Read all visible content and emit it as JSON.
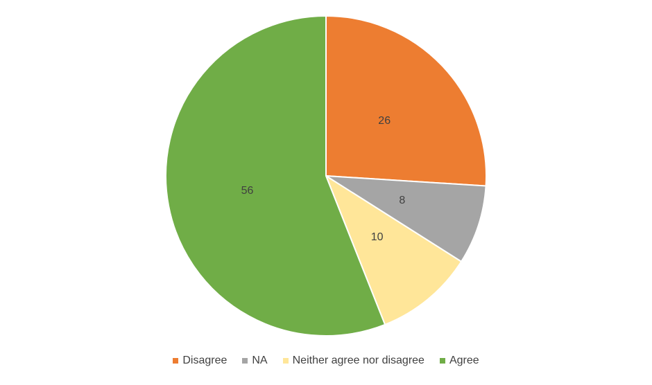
{
  "chart_data": {
    "type": "pie",
    "categories": [
      "Disagree",
      "NA",
      "Neither agree nor disagree",
      "Agree"
    ],
    "values": [
      26,
      8,
      10,
      56
    ],
    "colors": [
      "#ed7d31",
      "#a5a5a5",
      "#ffe699",
      "#70ad47"
    ],
    "legend": "bottom"
  }
}
